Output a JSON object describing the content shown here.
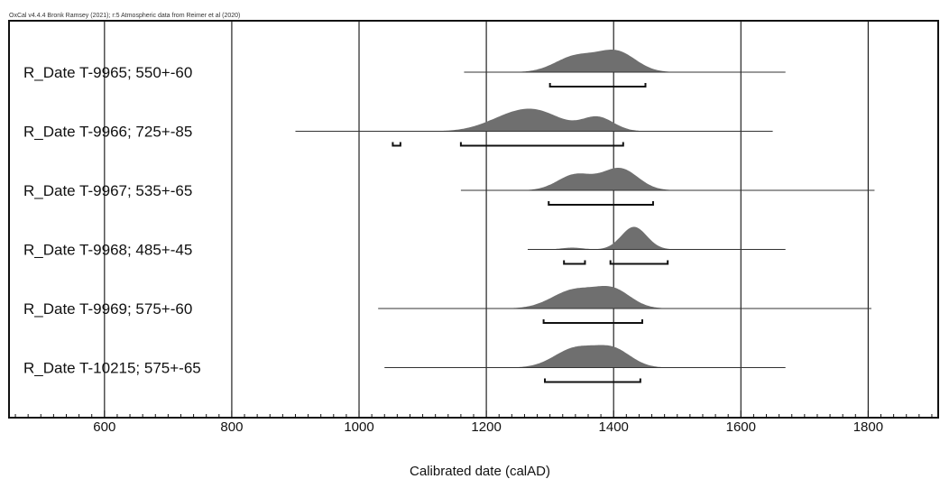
{
  "credit": "OxCal v4.4.4 Bronk Ramsey (2021); r:5 Atmospheric data from Reimer et al (2020)",
  "chart_data": {
    "type": "area",
    "xlabel": "Calibrated date (calAD)",
    "xlim": [
      450,
      1910
    ],
    "grid_x": true,
    "ticks": [
      600,
      800,
      1000,
      1200,
      1400,
      1600,
      1800
    ],
    "colors": {
      "fill": "#6f6f6f",
      "line": "#333333",
      "grid": "#222222"
    },
    "samples": [
      {
        "name": "R_Date T-9965; 550+-60",
        "range": [
          1165,
          1670
        ],
        "peaks": [
          {
            "x": 1340,
            "h": 0.78,
            "w": 32
          },
          {
            "x": 1405,
            "h": 1.0,
            "w": 30
          }
        ],
        "intervals": [
          [
            1300,
            1450
          ]
        ]
      },
      {
        "name": "R_Date T-9966; 725+-85",
        "range": [
          900,
          1650
        ],
        "peaks": [
          {
            "x": 1235,
            "h": 0.6,
            "w": 40
          },
          {
            "x": 1285,
            "h": 0.78,
            "w": 38
          },
          {
            "x": 1375,
            "h": 0.7,
            "w": 25
          }
        ],
        "intervals": [
          [
            1053,
            1065
          ],
          [
            1160,
            1415
          ]
        ]
      },
      {
        "name": "R_Date T-9967; 535+-65",
        "range": [
          1160,
          1810
        ],
        "peaks": [
          {
            "x": 1340,
            "h": 0.72,
            "w": 28
          },
          {
            "x": 1410,
            "h": 1.0,
            "w": 28
          }
        ],
        "intervals": [
          [
            1298,
            1462
          ]
        ]
      },
      {
        "name": "R_Date T-9968; 485+-45",
        "range": [
          1265,
          1670
        ],
        "peaks": [
          {
            "x": 1335,
            "h": 0.08,
            "w": 16
          },
          {
            "x": 1432,
            "h": 1.0,
            "w": 20
          }
        ],
        "intervals": [
          [
            1322,
            1355
          ],
          [
            1395,
            1485
          ]
        ]
      },
      {
        "name": "R_Date T-9969; 575+-60",
        "range": [
          1030,
          1805
        ],
        "peaks": [
          {
            "x": 1338,
            "h": 1.0,
            "w": 35
          },
          {
            "x": 1400,
            "h": 0.95,
            "w": 28
          }
        ],
        "intervals": [
          [
            1290,
            1445
          ]
        ]
      },
      {
        "name": "R_Date T-10215; 575+-65",
        "range": [
          1040,
          1670
        ],
        "peaks": [
          {
            "x": 1340,
            "h": 1.0,
            "w": 33
          },
          {
            "x": 1400,
            "h": 0.9,
            "w": 28
          }
        ],
        "intervals": [
          [
            1292,
            1442
          ]
        ]
      }
    ]
  }
}
